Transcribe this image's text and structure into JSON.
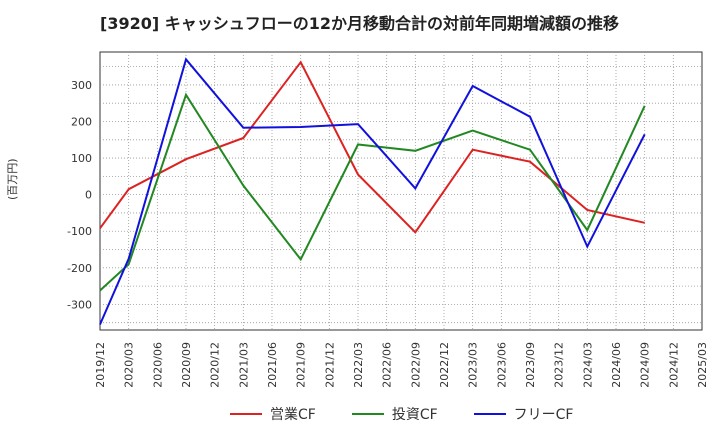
{
  "chart_data": {
    "type": "line",
    "title": "[3920]  キャッシュフローの12か月移動合計の対前年同期増減額の推移",
    "ylabel": "(百万円)",
    "ylim": [
      -370,
      390
    ],
    "yticks": [
      -300,
      -200,
      -100,
      0,
      100,
      200,
      300
    ],
    "x_categories": [
      "2019/12",
      "2020/03",
      "2020/06",
      "2020/09",
      "2020/12",
      "2021/03",
      "2021/06",
      "2021/09",
      "2021/12",
      "2022/03",
      "2022/06",
      "2022/09",
      "2022/12",
      "2023/03",
      "2023/06",
      "2023/09",
      "2023/12",
      "2024/03",
      "2024/06",
      "2024/09",
      "2024/12",
      "2025/03"
    ],
    "grid": true,
    "legend_position": "bottom",
    "series": [
      {
        "name": "営業CF",
        "color": "#dd2222",
        "values": [
          -92,
          15,
          null,
          97,
          null,
          155,
          null,
          362,
          null,
          55,
          null,
          -103,
          null,
          123,
          null,
          90,
          null,
          -42,
          null,
          -77,
          null,
          null
        ]
      },
      {
        "name": "投資CF",
        "color": "#228822",
        "values": [
          -262,
          -190,
          null,
          273,
          null,
          25,
          null,
          -177,
          null,
          137,
          null,
          120,
          null,
          175,
          null,
          123,
          null,
          -97,
          null,
          243,
          null,
          null
        ]
      },
      {
        "name": "フリーCF",
        "color": "#1111dd",
        "values": [
          -355,
          -175,
          null,
          370,
          null,
          183,
          null,
          185,
          null,
          193,
          null,
          17,
          null,
          297,
          null,
          213,
          null,
          -142,
          null,
          165,
          null,
          null
        ]
      }
    ]
  }
}
